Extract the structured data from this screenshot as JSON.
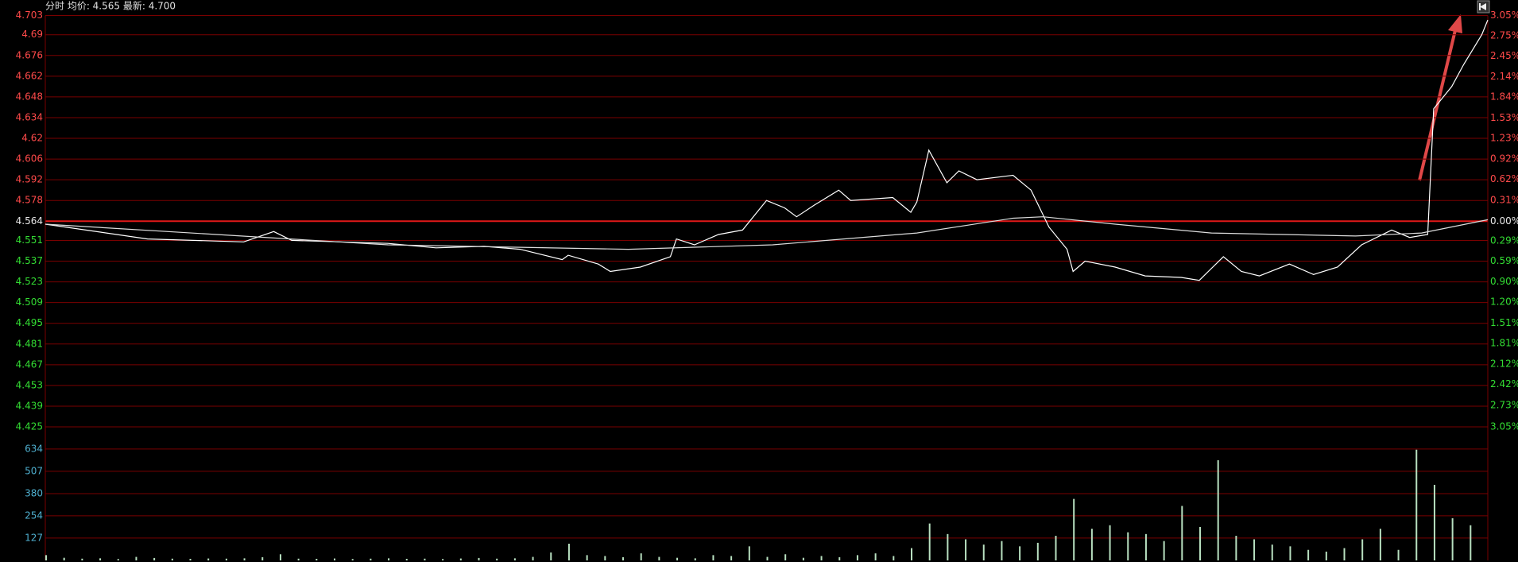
{
  "header": "分时 均价: 4.565 最新: 4.700",
  "chart_data": [
    {
      "type": "line",
      "xlim": [
        0,
        240
      ],
      "ylim": [
        4.425,
        4.703
      ],
      "yticks": [
        4.703,
        4.69,
        4.676,
        4.662,
        4.648,
        4.634,
        4.62,
        4.606,
        4.592,
        4.578,
        4.564,
        4.551,
        4.537,
        4.523,
        4.509,
        4.495,
        4.481,
        4.467,
        4.453,
        4.439,
        4.425
      ],
      "y2lim": [
        -3.05,
        3.05
      ],
      "y2ticks": [
        {
          "value": 3.05,
          "label": "3.05%"
        },
        {
          "value": 2.75,
          "label": "2.75%"
        },
        {
          "value": 2.45,
          "label": "2.45%"
        },
        {
          "value": 2.14,
          "label": "2.14%"
        },
        {
          "value": 1.84,
          "label": "1.84%"
        },
        {
          "value": 1.53,
          "label": "1.53%"
        },
        {
          "value": 1.23,
          "label": "1.23%"
        },
        {
          "value": 0.92,
          "label": "0.92%"
        },
        {
          "value": 0.62,
          "label": "0.62%"
        },
        {
          "value": 0.31,
          "label": "0.31%"
        },
        {
          "value": 0,
          "label": "0.00%"
        },
        {
          "value": -0.29,
          "label": "0.29%"
        },
        {
          "value": -0.59,
          "label": "0.59%"
        },
        {
          "value": -0.9,
          "label": "0.90%"
        },
        {
          "value": -1.2,
          "label": "1.20%"
        },
        {
          "value": -1.51,
          "label": "1.51%"
        },
        {
          "value": -1.81,
          "label": "1.81%"
        },
        {
          "value": -2.12,
          "label": "2.12%"
        },
        {
          "value": -2.42,
          "label": "2.42%"
        },
        {
          "value": -2.73,
          "label": "2.73%"
        },
        {
          "value": -3.05,
          "label": "3.05%"
        }
      ],
      "grid": true,
      "series": [
        {
          "color": "#ffffff",
          "x": [
            0,
            17,
            33,
            38,
            41,
            57,
            65,
            73,
            79,
            86,
            87,
            92,
            94,
            99,
            104,
            105,
            108,
            112,
            116,
            120,
            123,
            125,
            128,
            132,
            134,
            141,
            144,
            145,
            147,
            150,
            152,
            155,
            161,
            164,
            167,
            170,
            171,
            173,
            178,
            183,
            189,
            192,
            196,
            199,
            202,
            207,
            211,
            215,
            219,
            224,
            227,
            230,
            231,
            234,
            236,
            239,
            240
          ],
          "values": [
            4.562,
            4.552,
            4.55,
            4.557,
            4.551,
            4.549,
            4.546,
            4.547,
            4.545,
            4.538,
            4.541,
            4.535,
            4.53,
            4.533,
            4.54,
            4.552,
            4.548,
            4.555,
            4.558,
            4.578,
            4.573,
            4.567,
            4.575,
            4.585,
            4.578,
            4.58,
            4.57,
            4.577,
            4.612,
            4.59,
            4.598,
            4.592,
            4.595,
            4.585,
            4.56,
            4.545,
            4.53,
            4.537,
            4.533,
            4.527,
            4.526,
            4.524,
            4.54,
            4.53,
            4.527,
            4.535,
            4.528,
            4.533,
            4.548,
            4.558,
            4.553,
            4.555,
            4.64,
            4.655,
            4.67,
            4.69,
            4.7
          ]
        },
        {
          "color": "#dddddd",
          "x": [
            0,
            57,
            97,
            121,
            145,
            161,
            166,
            178,
            194,
            218,
            229,
            240
          ],
          "values": [
            4.562,
            4.548,
            4.545,
            4.548,
            4.556,
            4.566,
            4.567,
            4.562,
            4.556,
            4.554,
            4.556,
            4.565
          ]
        }
      ]
    },
    {
      "type": "bar",
      "xlim": [
        0,
        240
      ],
      "ylim": [
        0,
        760
      ],
      "yticks": [
        127,
        254,
        380,
        507,
        634
      ],
      "grid": true,
      "color": "#b8e0c0",
      "x": [
        0,
        3,
        6,
        9,
        12,
        15,
        18,
        21,
        24,
        27,
        30,
        33,
        36,
        39,
        42,
        45,
        48,
        51,
        54,
        57,
        60,
        63,
        66,
        69,
        72,
        75,
        78,
        81,
        84,
        87,
        90,
        93,
        96,
        99,
        102,
        105,
        108,
        111,
        114,
        117,
        120,
        123,
        126,
        129,
        132,
        135,
        138,
        141,
        144,
        147,
        150,
        153,
        156,
        159,
        162,
        165,
        168,
        171,
        174,
        177,
        180,
        183,
        186,
        189,
        192,
        195,
        198,
        201,
        204,
        207,
        210,
        213,
        216,
        219,
        222,
        225,
        228,
        231,
        234,
        237
      ],
      "values": [
        30,
        15,
        10,
        12,
        8,
        20,
        14,
        10,
        9,
        11,
        10,
        12,
        18,
        35,
        10,
        9,
        11,
        8,
        10,
        12,
        9,
        10,
        8,
        11,
        14,
        10,
        12,
        20,
        45,
        95,
        30,
        25,
        18,
        40,
        20,
        15,
        12,
        30,
        25,
        80,
        20,
        35,
        15,
        25,
        18,
        30,
        40,
        25,
        70,
        210,
        150,
        120,
        90,
        110,
        80,
        100,
        140,
        350,
        180,
        200,
        160,
        150,
        110,
        310,
        190,
        570,
        140,
        120,
        90,
        80,
        60,
        50,
        70,
        120,
        180,
        60,
        630,
        430,
        240,
        200
      ]
    }
  ]
}
